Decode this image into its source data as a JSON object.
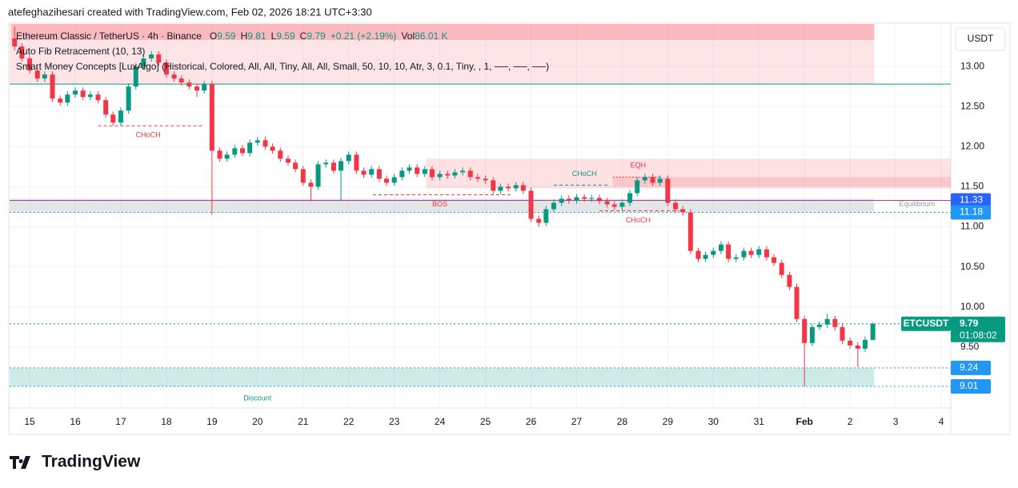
{
  "header": "atefeghazihesari created with TradingView.com, Feb 02, 2026 18:21 UTC+3:30",
  "logo": "TradingView",
  "chart_data": {
    "type": "candlestick",
    "symbol": "Ethereum Classic / TetherUS · 4h · Binance",
    "legend_labels": [
      "O",
      "H",
      "L",
      "C"
    ],
    "change": "+0.21 (+2.19%)",
    "volume_label": "Vol",
    "volume": "86.01 K",
    "indicators": [
      "Auto Fib Retracement (10, 13)",
      "Smart Money Concepts [LuxAlgo] (Historical, Colored, All, All, Tiny, All, All, Small, 50, 10, 10, Atr, 3, 0.1, Tiny, , 1, ──, ──, ──)"
    ],
    "currency": "USDT",
    "symbol_tag": "ETCUSDT",
    "countdown": "01:08:02",
    "up_color": "#089981",
    "down_color": "#f23645",
    "grid": true,
    "xlim": [
      14.56,
      35.21
    ],
    "ylim": [
      8.74,
      13.53
    ],
    "xticks": [
      15,
      16,
      17,
      18,
      19,
      20,
      21,
      22,
      23,
      24,
      25,
      26,
      27,
      28,
      29,
      30,
      31,
      {
        "value": 32,
        "label": "Feb"
      },
      {
        "value": 33,
        "label": "2"
      },
      {
        "value": 34,
        "label": "3"
      },
      {
        "value": 35,
        "label": "4"
      }
    ],
    "yticks": [
      {
        "value": 9.5,
        "label": "9.50"
      },
      {
        "value": 10,
        "label": "10.00"
      },
      {
        "value": 10.5,
        "label": "10.50"
      },
      {
        "value": 11,
        "label": "11.00"
      },
      {
        "value": 11.5,
        "label": "11.50"
      },
      {
        "value": 12,
        "label": "12.00"
      },
      {
        "value": 12.5,
        "label": "12.50"
      },
      {
        "value": 13,
        "label": "13.00"
      }
    ],
    "x": [
      14.67,
      14.83,
      15,
      15.17,
      15.33,
      15.5,
      15.67,
      15.83,
      16,
      16.17,
      16.33,
      16.5,
      16.67,
      16.83,
      17,
      17.17,
      17.33,
      17.5,
      17.67,
      17.83,
      18,
      18.17,
      18.33,
      18.5,
      18.67,
      18.83,
      19,
      19.17,
      19.33,
      19.5,
      19.67,
      19.83,
      20,
      20.17,
      20.33,
      20.5,
      20.67,
      20.83,
      21,
      21.17,
      21.33,
      21.5,
      21.67,
      21.83,
      22,
      22.17,
      22.33,
      22.5,
      22.67,
      22.83,
      23,
      23.17,
      23.33,
      23.5,
      23.67,
      23.83,
      24,
      24.17,
      24.33,
      24.5,
      24.67,
      24.83,
      25,
      25.17,
      25.33,
      25.5,
      25.67,
      25.83,
      26,
      26.17,
      26.33,
      26.5,
      26.67,
      26.83,
      27,
      27.17,
      27.33,
      27.5,
      27.67,
      27.83,
      28,
      28.17,
      28.33,
      28.5,
      28.67,
      28.83,
      29,
      29.17,
      29.33,
      29.5,
      29.67,
      29.83,
      30,
      30.17,
      30.33,
      30.5,
      30.67,
      30.83,
      31,
      31.17,
      31.33,
      31.5,
      31.67,
      31.83,
      32,
      32.17,
      32.33,
      32.5,
      32.67,
      32.83,
      33,
      33.17,
      33.33,
      33.5
    ],
    "ohlc": [
      [
        13.35,
        13.5,
        13.2,
        13.25
      ],
      [
        13.25,
        13.29,
        13.06,
        13.1
      ],
      [
        13.1,
        13.14,
        12.91,
        12.95
      ],
      [
        12.95,
        12.99,
        12.81,
        12.85
      ],
      [
        12.85,
        12.94,
        12.81,
        12.9
      ],
      [
        12.9,
        12.94,
        12.56,
        12.6
      ],
      [
        12.6,
        12.64,
        12.51,
        12.55
      ],
      [
        12.55,
        12.69,
        12.51,
        12.65
      ],
      [
        12.65,
        12.74,
        12.61,
        12.7
      ],
      [
        12.7,
        12.74,
        12.58,
        12.62
      ],
      [
        12.62,
        12.69,
        12.58,
        12.65
      ],
      [
        12.65,
        12.69,
        12.54,
        12.58
      ],
      [
        12.58,
        12.62,
        12.36,
        12.4
      ],
      [
        12.4,
        12.44,
        12.26,
        12.3
      ],
      [
        12.3,
        12.49,
        12.26,
        12.45
      ],
      [
        12.45,
        12.79,
        12.41,
        12.75
      ],
      [
        12.75,
        13.04,
        12.71,
        13
      ],
      [
        13,
        13.14,
        12.96,
        13.1
      ],
      [
        13.1,
        13.19,
        13.06,
        13.15
      ],
      [
        13.15,
        13.19,
        13.01,
        13.05
      ],
      [
        13.05,
        13.09,
        12.86,
        12.9
      ],
      [
        12.9,
        12.94,
        12.81,
        12.85
      ],
      [
        12.85,
        12.89,
        12.76,
        12.8
      ],
      [
        12.8,
        12.84,
        12.71,
        12.75
      ],
      [
        12.75,
        12.79,
        12.62,
        12.7
      ],
      [
        12.7,
        12.82,
        12.66,
        12.78
      ],
      [
        12.78,
        12.82,
        11.15,
        11.95
      ],
      [
        11.95,
        11.99,
        11.81,
        11.85
      ],
      [
        11.85,
        11.94,
        11.81,
        11.9
      ],
      [
        11.9,
        12.02,
        11.86,
        11.98
      ],
      [
        11.98,
        12.02,
        11.88,
        11.92
      ],
      [
        11.92,
        12.09,
        11.88,
        12.05
      ],
      [
        12.05,
        12.12,
        12.01,
        12.08
      ],
      [
        12.08,
        12.12,
        11.96,
        12
      ],
      [
        12,
        12.04,
        11.91,
        11.95
      ],
      [
        11.95,
        11.99,
        11.81,
        11.85
      ],
      [
        11.85,
        11.89,
        11.76,
        11.8
      ],
      [
        11.8,
        11.84,
        11.68,
        11.72
      ],
      [
        11.72,
        11.76,
        11.51,
        11.55
      ],
      [
        11.55,
        11.59,
        11.32,
        11.5
      ],
      [
        11.5,
        11.82,
        11.46,
        11.78
      ],
      [
        11.78,
        11.84,
        11.74,
        11.8
      ],
      [
        11.8,
        11.84,
        11.66,
        11.7
      ],
      [
        11.7,
        11.86,
        11.32,
        11.82
      ],
      [
        11.82,
        11.94,
        11.78,
        11.9
      ],
      [
        11.9,
        11.94,
        11.66,
        11.7
      ],
      [
        11.7,
        11.74,
        11.61,
        11.65
      ],
      [
        11.65,
        11.76,
        11.61,
        11.72
      ],
      [
        11.72,
        11.76,
        11.56,
        11.6
      ],
      [
        11.6,
        11.64,
        11.51,
        11.55
      ],
      [
        11.55,
        11.66,
        11.51,
        11.62
      ],
      [
        11.62,
        11.74,
        11.58,
        11.7
      ],
      [
        11.7,
        11.78,
        11.66,
        11.74
      ],
      [
        11.74,
        11.78,
        11.62,
        11.66
      ],
      [
        11.66,
        11.76,
        11.62,
        11.72
      ],
      [
        11.72,
        11.76,
        11.58,
        11.62
      ],
      [
        11.62,
        11.7,
        11.58,
        11.66
      ],
      [
        11.66,
        11.7,
        11.6,
        11.64
      ],
      [
        11.64,
        11.72,
        11.6,
        11.68
      ],
      [
        11.68,
        11.74,
        11.64,
        11.7
      ],
      [
        11.7,
        11.74,
        11.58,
        11.62
      ],
      [
        11.62,
        11.66,
        11.56,
        11.6
      ],
      [
        11.6,
        11.64,
        11.54,
        11.58
      ],
      [
        11.58,
        11.62,
        11.41,
        11.45
      ],
      [
        11.45,
        11.54,
        11.41,
        11.5
      ],
      [
        11.5,
        11.54,
        11.44,
        11.48
      ],
      [
        11.48,
        11.56,
        11.44,
        11.52
      ],
      [
        11.52,
        11.56,
        11.41,
        11.45
      ],
      [
        11.45,
        11.49,
        11.06,
        11.1
      ],
      [
        11.1,
        11.14,
        11,
        11.05
      ],
      [
        11.05,
        11.26,
        11.01,
        11.22
      ],
      [
        11.22,
        11.34,
        11.18,
        11.3
      ],
      [
        11.3,
        11.39,
        11.26,
        11.35
      ],
      [
        11.35,
        11.39,
        11.29,
        11.33
      ],
      [
        11.33,
        11.41,
        11.29,
        11.37
      ],
      [
        11.37,
        11.41,
        11.31,
        11.35
      ],
      [
        11.35,
        11.4,
        11.31,
        11.36
      ],
      [
        11.36,
        11.4,
        11.28,
        11.32
      ],
      [
        11.32,
        11.36,
        11.24,
        11.28
      ],
      [
        11.28,
        11.32,
        11.21,
        11.25
      ],
      [
        11.25,
        11.34,
        11.21,
        11.3
      ],
      [
        11.3,
        11.46,
        11.26,
        11.42
      ],
      [
        11.42,
        11.62,
        11.38,
        11.58
      ],
      [
        11.58,
        11.66,
        11.54,
        11.62
      ],
      [
        11.62,
        11.66,
        11.51,
        11.55
      ],
      [
        11.55,
        11.64,
        11.51,
        11.6
      ],
      [
        11.6,
        11.64,
        11.26,
        11.3
      ],
      [
        11.3,
        11.34,
        11.18,
        11.22
      ],
      [
        11.22,
        11.26,
        11.14,
        11.18
      ],
      [
        11.18,
        11.22,
        10.66,
        10.7
      ],
      [
        10.7,
        10.74,
        10.56,
        10.6
      ],
      [
        10.6,
        10.69,
        10.56,
        10.65
      ],
      [
        10.65,
        10.74,
        10.61,
        10.7
      ],
      [
        10.7,
        10.82,
        10.66,
        10.78
      ],
      [
        10.78,
        10.82,
        10.56,
        10.6
      ],
      [
        10.6,
        10.66,
        10.56,
        10.62
      ],
      [
        10.62,
        10.74,
        10.58,
        10.7
      ],
      [
        10.7,
        10.74,
        10.61,
        10.65
      ],
      [
        10.65,
        10.76,
        10.61,
        10.72
      ],
      [
        10.72,
        10.76,
        10.58,
        10.62
      ],
      [
        10.62,
        10.66,
        10.51,
        10.55
      ],
      [
        10.55,
        10.59,
        10.36,
        10.4
      ],
      [
        10.4,
        10.44,
        10.21,
        10.25
      ],
      [
        10.25,
        10.29,
        9.81,
        9.85
      ],
      [
        9.85,
        9.89,
        9.01,
        9.55
      ],
      [
        9.55,
        9.79,
        9.51,
        9.75
      ],
      [
        9.75,
        9.82,
        9.71,
        9.78
      ],
      [
        9.78,
        9.92,
        9.74,
        9.85
      ],
      [
        9.85,
        9.89,
        9.71,
        9.75
      ],
      [
        9.75,
        9.79,
        9.54,
        9.58
      ],
      [
        9.58,
        9.62,
        9.48,
        9.52
      ],
      [
        9.52,
        9.56,
        9.25,
        9.48
      ],
      [
        9.48,
        9.63,
        9.44,
        9.59
      ],
      [
        9.59,
        9.81,
        9.59,
        9.79
      ]
    ],
    "zones": [
      {
        "from": 14.56,
        "to": 33.53,
        "top": 13.53,
        "bottom": 12.78,
        "color": "rgba(242,54,69,0.13)"
      },
      {
        "from": 14.6,
        "to": 33.53,
        "top": 13.53,
        "bottom": 13.33,
        "color": "rgba(242,54,69,0.25)"
      },
      {
        "from": 14.56,
        "to": 33.53,
        "top": 11.35,
        "bottom": 11.18,
        "color": "rgba(120,123,134,0.2)"
      },
      {
        "from": 14.56,
        "to": 33.53,
        "top": 9.24,
        "bottom": 9.01,
        "color": "rgba(8,153,129,0.2)"
      },
      {
        "from": 23.7,
        "to": 35.21,
        "top": 11.85,
        "bottom": 11.48,
        "color": "rgba(242,54,69,0.15)"
      },
      {
        "from": 27.8,
        "to": 35.21,
        "top": 11.62,
        "bottom": 11.5,
        "color": "rgba(242,54,69,0.15)"
      }
    ],
    "levels": [
      {
        "from": 14.56,
        "to": 35.21,
        "value": 12.78,
        "color": "#089981",
        "dash": "none"
      },
      {
        "from": 14.56,
        "to": 35.21,
        "value": 11.33,
        "color": "#f23645",
        "dash": "none"
      },
      {
        "from": 16.5,
        "to": 18.83,
        "value": 12.26,
        "color": "#f23645",
        "dash": "4 3"
      },
      {
        "from": 22.53,
        "to": 25.6,
        "value": 11.4,
        "color": "#f23645",
        "dash": "4 3"
      },
      {
        "from": 26.5,
        "to": 27.7,
        "value": 11.52,
        "color": "#089981",
        "dash": "4 3"
      },
      {
        "from": 27.8,
        "to": 28.85,
        "value": 11.62,
        "color": "#f23645",
        "dash": "2 2"
      },
      {
        "from": 27.5,
        "to": 29.25,
        "value": 11.2,
        "color": "#f23645",
        "dash": "4 3"
      }
    ],
    "annotations": [
      {
        "text": "CHoCH",
        "x": 17.6,
        "y": 12.14,
        "color": "#f23645"
      },
      {
        "text": "CHoCH",
        "x": 27.17,
        "y": 11.66,
        "color": "#089981"
      },
      {
        "text": "EQH",
        "x": 28.35,
        "y": 11.76,
        "color": "#f23645"
      },
      {
        "text": "BOS",
        "x": 24,
        "y": 11.28,
        "color": "#f23645"
      },
      {
        "text": "CHoCH",
        "x": 28.35,
        "y": 11.08,
        "color": "#f23645"
      },
      {
        "text": "Equilibrium",
        "x": 34.47,
        "y": 11.28,
        "color": "#9598a1"
      },
      {
        "text": "Discount",
        "x": 20,
        "y": 8.86,
        "color": "#089981"
      }
    ],
    "price_labels": [
      {
        "value": 11.33,
        "color": "#2962ff"
      },
      {
        "value": 11.18,
        "color": "#2196f3"
      },
      {
        "value": 9.24,
        "color": "#2196f3"
      },
      {
        "value": 9.01,
        "color": "#2196f3"
      }
    ]
  }
}
